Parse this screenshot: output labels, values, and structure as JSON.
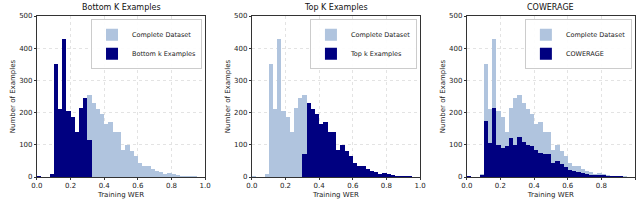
{
  "chart_data": [
    {
      "type": "histogram",
      "title": "Bottom K Examples",
      "x_label": "Training WER",
      "y_label": "Number of Examples",
      "bins": [
        0,
        0.025,
        0.05,
        0.075,
        0.1,
        0.125,
        0.15,
        0.175,
        0.2,
        0.225,
        0.25,
        0.275,
        0.3,
        0.325,
        0.35,
        0.375,
        0.4,
        0.425,
        0.45,
        0.475,
        0.5,
        0.525,
        0.55,
        0.575,
        0.6,
        0.625,
        0.65,
        0.675,
        0.7,
        0.725,
        0.75,
        0.775,
        0.8,
        0.825,
        0.85,
        0.875,
        0.9,
        0.925,
        0.95,
        0.975,
        1.0
      ],
      "series": [
        {
          "name": "Complete Dataset",
          "color": "#b0c4de",
          "values": [
            3,
            0,
            0,
            10,
            350,
            210,
            430,
            205,
            185,
            140,
            215,
            245,
            255,
            230,
            210,
            195,
            165,
            170,
            140,
            140,
            85,
            100,
            80,
            65,
            45,
            35,
            35,
            25,
            20,
            15,
            10,
            12,
            8,
            5,
            3,
            3,
            2,
            1,
            0,
            0
          ]
        },
        {
          "name": "Bottom k Examples",
          "color": "#000080",
          "values": [
            3,
            0,
            0,
            10,
            350,
            210,
            430,
            205,
            185,
            140,
            215,
            245,
            115,
            0,
            0,
            0,
            0,
            0,
            0,
            0,
            0,
            0,
            0,
            0,
            0,
            0,
            0,
            0,
            0,
            0,
            0,
            0,
            0,
            0,
            0,
            0,
            0,
            0,
            0,
            0
          ]
        }
      ],
      "xlim": [
        0,
        1.0
      ],
      "xticks": [
        {
          "value": 0,
          "label": "0.0"
        },
        {
          "value": 0.2,
          "label": "0.2"
        },
        {
          "value": 0.4,
          "label": "0.4"
        },
        {
          "value": 0.6,
          "label": "0.6"
        },
        {
          "value": 0.8,
          "label": "0.8"
        },
        {
          "value": 1.0,
          "label": "1.0"
        }
      ],
      "ylim": [
        0,
        500
      ],
      "yticks": [
        0,
        100,
        200,
        300,
        400,
        500
      ],
      "grid": true,
      "legend": "upper right"
    },
    {
      "type": "histogram",
      "title": "Top K Examples",
      "x_label": "Training WER",
      "y_label": "Number of Examples",
      "bins": [
        0,
        0.025,
        0.05,
        0.075,
        0.1,
        0.125,
        0.15,
        0.175,
        0.2,
        0.225,
        0.25,
        0.275,
        0.3,
        0.325,
        0.35,
        0.375,
        0.4,
        0.425,
        0.45,
        0.475,
        0.5,
        0.525,
        0.55,
        0.575,
        0.6,
        0.625,
        0.65,
        0.675,
        0.7,
        0.725,
        0.75,
        0.775,
        0.8,
        0.825,
        0.85,
        0.875,
        0.9,
        0.925,
        0.95,
        0.975,
        1.0
      ],
      "series": [
        {
          "name": "Complete Dataset",
          "color": "#b0c4de",
          "values": [
            3,
            0,
            0,
            10,
            350,
            210,
            430,
            205,
            185,
            140,
            215,
            245,
            255,
            230,
            210,
            195,
            165,
            170,
            140,
            140,
            85,
            100,
            80,
            65,
            45,
            35,
            35,
            25,
            20,
            15,
            10,
            12,
            8,
            5,
            3,
            3,
            2,
            1,
            0,
            0
          ]
        },
        {
          "name": "Top k Examples",
          "color": "#000080",
          "values": [
            0,
            0,
            0,
            0,
            0,
            0,
            0,
            0,
            0,
            0,
            0,
            0,
            70,
            230,
            210,
            195,
            165,
            170,
            140,
            140,
            85,
            100,
            80,
            65,
            45,
            35,
            35,
            25,
            20,
            15,
            10,
            12,
            8,
            5,
            3,
            3,
            2,
            1,
            0,
            0
          ]
        }
      ],
      "xlim": [
        0,
        1.0
      ],
      "xticks": [
        {
          "value": 0,
          "label": "0.0"
        },
        {
          "value": 0.2,
          "label": "0.2"
        },
        {
          "value": 0.4,
          "label": "0.4"
        },
        {
          "value": 0.6,
          "label": "0.6"
        },
        {
          "value": 0.8,
          "label": "0.8"
        },
        {
          "value": 1.0,
          "label": "1.0"
        }
      ],
      "ylim": [
        0,
        500
      ],
      "yticks": [
        0,
        100,
        200,
        300,
        400,
        500
      ],
      "grid": true,
      "legend": "upper right"
    },
    {
      "type": "histogram",
      "title": "COWERAGE",
      "x_label": "Training WER",
      "y_label": "Number of Examples",
      "bins": [
        0,
        0.025,
        0.05,
        0.075,
        0.1,
        0.125,
        0.15,
        0.175,
        0.2,
        0.225,
        0.25,
        0.275,
        0.3,
        0.325,
        0.35,
        0.375,
        0.4,
        0.425,
        0.45,
        0.475,
        0.5,
        0.525,
        0.55,
        0.575,
        0.6,
        0.625,
        0.65,
        0.675,
        0.7,
        0.725,
        0.75,
        0.775,
        0.8,
        0.825,
        0.85,
        0.875,
        0.9,
        0.925,
        0.95,
        0.975,
        1.0
      ],
      "series": [
        {
          "name": "Complete Dataset",
          "color": "#b0c4de",
          "values": [
            3,
            0,
            0,
            10,
            350,
            210,
            430,
            205,
            185,
            140,
            215,
            245,
            255,
            230,
            210,
            195,
            165,
            170,
            140,
            140,
            85,
            100,
            80,
            65,
            45,
            35,
            35,
            25,
            20,
            15,
            10,
            12,
            8,
            5,
            3,
            3,
            2,
            1,
            0,
            0
          ]
        },
        {
          "name": "COWERAGE",
          "color": "#000080",
          "values": [
            1,
            0,
            0,
            5,
            175,
            105,
            215,
            100,
            90,
            95,
            120,
            100,
            125,
            110,
            100,
            95,
            85,
            75,
            70,
            70,
            45,
            50,
            40,
            30,
            22,
            18,
            17,
            12,
            10,
            7,
            5,
            6,
            4,
            2,
            2,
            1,
            1,
            0,
            0,
            0
          ]
        }
      ],
      "xlim": [
        0,
        1.0
      ],
      "xticks": [
        {
          "value": 0,
          "label": "0.0"
        },
        {
          "value": 0.2,
          "label": "0.2"
        },
        {
          "value": 0.4,
          "label": "0.4"
        },
        {
          "value": 0.6,
          "label": "0.6"
        },
        {
          "value": 0.8,
          "label": "0.8"
        },
        {
          "value": 1.0,
          "label": "1.0"
        }
      ],
      "ylim": [
        0,
        500
      ],
      "yticks": [
        0,
        100,
        200,
        300,
        400,
        500
      ],
      "grid": true,
      "legend": "upper right"
    }
  ]
}
